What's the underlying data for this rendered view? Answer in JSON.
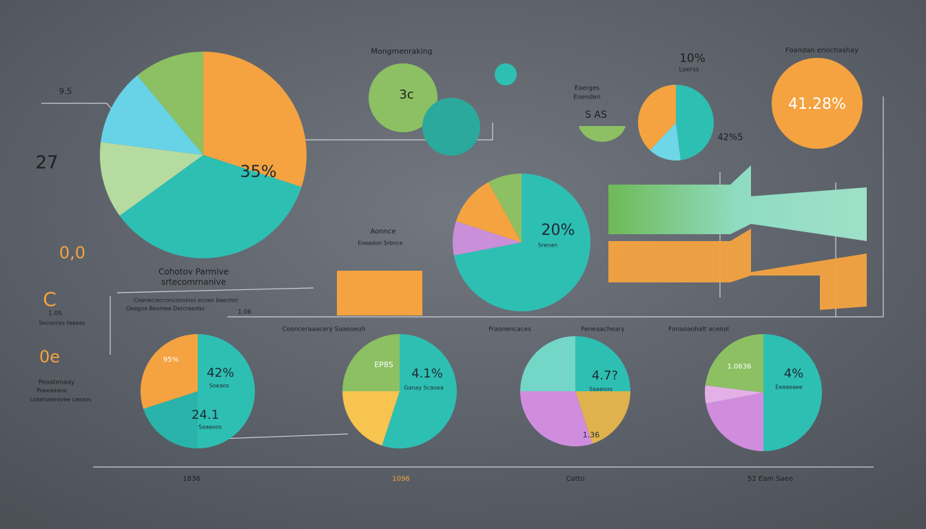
{
  "chart_data": [
    {
      "type": "pie",
      "values": [
        30,
        35,
        12,
        12,
        11
      ],
      "colors": [
        "#f4a340",
        "#2ebfb3",
        "#b6dba0",
        "#68d3e6",
        "#8cc063"
      ],
      "annotations": [
        "35%"
      ]
    },
    {
      "type": "pie",
      "values": [
        72,
        8,
        12,
        8
      ],
      "colors": [
        "#2ebfb3",
        "#c98fd8",
        "#f4a340",
        "#8cc063"
      ],
      "annotations": [
        "20%",
        "Srenan"
      ]
    },
    {
      "type": "pie",
      "values": [
        48,
        14,
        38
      ],
      "colors": [
        "#2ebfb3",
        "#6fd6e8",
        "#f4a340"
      ],
      "annotations": []
    },
    {
      "type": "pie",
      "values": [
        50,
        20,
        30
      ],
      "colors": [
        "#2ebfb3",
        "#29b3aa",
        "#f4a340"
      ],
      "annotations": [
        "42%",
        "Soeaos",
        "24.1",
        "Saaeoos",
        "95%"
      ]
    },
    {
      "type": "pie",
      "values": [
        55,
        20,
        25
      ],
      "colors": [
        "#2ebfb3",
        "#f6c44f",
        "#8cc063"
      ],
      "annotations": [
        "4.1%",
        "Ganay Scaoea",
        "EP8S"
      ]
    },
    {
      "type": "pie",
      "values": [
        25,
        20,
        30,
        25
      ],
      "colors": [
        "#2ebfb3",
        "#e0b24d",
        "#d08ddd",
        "#73d6c6"
      ],
      "annotations": [
        "4.7?",
        "Saaeoos",
        "1.36"
      ]
    },
    {
      "type": "pie",
      "values": [
        50,
        22,
        5,
        23
      ],
      "colors": [
        "#2ebfb3",
        "#d08ddd",
        "#e4b0e8",
        "#8cc063"
      ],
      "annotations": [
        "4%",
        "Eeaaeaee",
        "1.0636"
      ]
    }
  ],
  "texts": [
    "Mongmenraking",
    "Foandan enochashay",
    "10%",
    "Loerss",
    "Eaerges",
    "Eoenden",
    "S AS",
    "42%5",
    "3c",
    "41.28%",
    "9.5",
    "27",
    "0,0",
    "Cohotov Parmive",
    "srtecomrnanive",
    "Coonecrecconconsinss ecnes beecton",
    "Oeegoa Besmee Dercreedas",
    "1.06",
    "Aonnce",
    "Eoeedon Srbnce",
    "Coonceraaacery Saaeoeuh",
    "Fraonencaces",
    "Feneaacheary",
    "Fonaoaohalt acenol",
    "C",
    "1.0S",
    "Soconces taeeas",
    "0e",
    "Peoatenaay",
    "Poeeaaane",
    "Loaehaeeavee caeaos",
    "1836",
    "1096",
    "Catto",
    "52 Eam Saeo"
  ]
}
